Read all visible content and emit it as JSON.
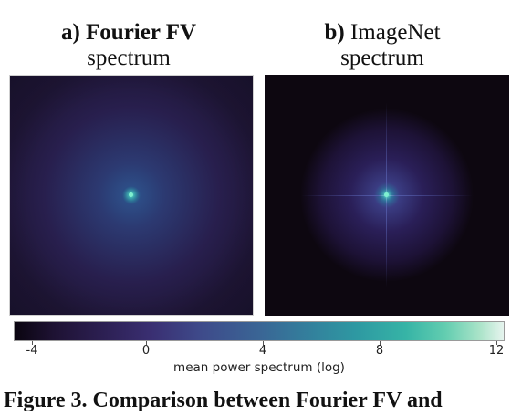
{
  "panels": [
    {
      "letter": "a)",
      "name": "Fourier FV",
      "subtitle": "spectrum"
    },
    {
      "letter": "b)",
      "name": "ImageNet",
      "subtitle": "spectrum"
    }
  ],
  "colorbar": {
    "ticks": [
      "-4",
      "0",
      "4",
      "8",
      "12"
    ],
    "label": "mean power spectrum (log)",
    "colormap": [
      "#0a0510",
      "#2c1f52",
      "#3e4a8a",
      "#337f9c",
      "#36b4a6",
      "#a9e3c8",
      "#e6f4ee"
    ]
  },
  "caption": "Figure 3. Comparison between Fourier FV and"
}
